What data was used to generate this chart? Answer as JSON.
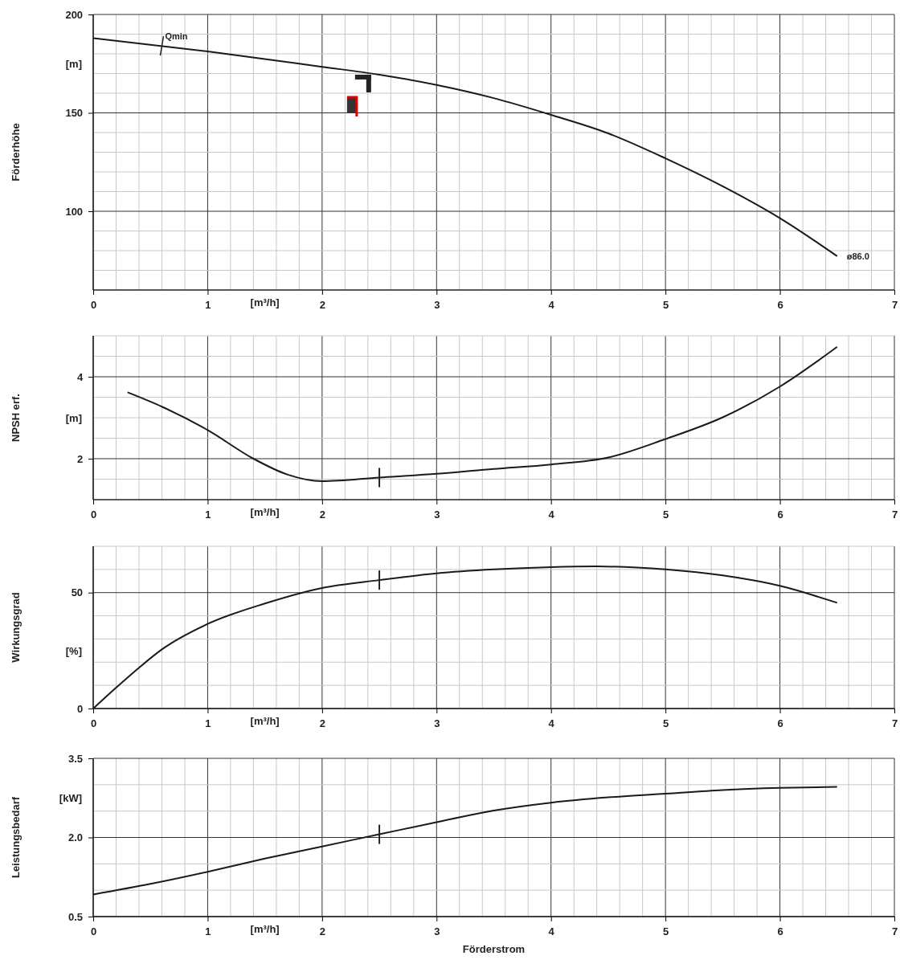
{
  "chart_data": [
    {
      "type": "line",
      "ylabel": "Förderhöhe",
      "annotations": [
        "[m]",
        "[m³/h]",
        {
          "text": "Qmin",
          "x": 0.6,
          "y": 184
        },
        {
          "text": "ø86.0",
          "x": 6.5,
          "y": 77
        }
      ],
      "xlim": [
        0,
        7
      ],
      "xticks": [
        0,
        {
          "value": 0.2,
          "label": null
        },
        {
          "value": 0.4,
          "label": null
        },
        {
          "value": 0.6,
          "label": null
        },
        {
          "value": 0.8,
          "label": null
        },
        1,
        {
          "value": 1.2,
          "label": null
        },
        {
          "value": 1.4,
          "label": null
        },
        {
          "value": 1.6,
          "label": null
        },
        {
          "value": 1.8,
          "label": null
        },
        2,
        {
          "value": 2.2,
          "label": null
        },
        {
          "value": 2.4,
          "label": null
        },
        {
          "value": 2.6,
          "label": null
        },
        {
          "value": 2.8,
          "label": null
        },
        3,
        {
          "value": 3.2,
          "label": null
        },
        {
          "value": 3.4,
          "label": null
        },
        {
          "value": 3.6,
          "label": null
        },
        {
          "value": 3.8,
          "label": null
        },
        4,
        {
          "value": 4.2,
          "label": null
        },
        {
          "value": 4.4,
          "label": null
        },
        {
          "value": 4.6,
          "label": null
        },
        {
          "value": 4.8,
          "label": null
        },
        5,
        {
          "value": 5.2,
          "label": null
        },
        {
          "value": 5.4,
          "label": null
        },
        {
          "value": 5.6,
          "label": null
        },
        {
          "value": 5.8,
          "label": null
        },
        6,
        {
          "value": 6.2,
          "label": null
        },
        {
          "value": 6.4,
          "label": null
        },
        {
          "value": 6.6,
          "label": null
        },
        {
          "value": 6.8,
          "label": null
        },
        7
      ],
      "ylim": [
        60,
        200
      ],
      "yticks": [
        {
          "value": 70,
          "label": null
        },
        {
          "value": 80,
          "label": null
        },
        {
          "value": 90,
          "label": null
        },
        100,
        {
          "value": 110,
          "label": null
        },
        {
          "value": 120,
          "label": null
        },
        {
          "value": 130,
          "label": null
        },
        {
          "value": 140,
          "label": null
        },
        150,
        {
          "value": 160,
          "label": null
        },
        {
          "value": 170,
          "label": null
        },
        {
          "value": 180,
          "label": null
        },
        {
          "value": 190,
          "label": null
        },
        200
      ],
      "grid": true,
      "marker": "none",
      "line_style": "solid",
      "x": [
        0,
        1,
        2,
        2.5,
        3,
        3.5,
        4,
        4.5,
        5,
        5.5,
        6,
        6.5
      ],
      "series": [
        {
          "color": "#1a1a1a",
          "values": [
            188,
            181.2,
            173.4,
            169.4,
            164.2,
            157.5,
            149,
            139.6,
            126.9,
            112.7,
            96.5,
            77.2
          ]
        }
      ]
    },
    {
      "type": "line",
      "ylabel": "NPSH erf.",
      "annotations": [
        "[m]",
        "[m³/h]"
      ],
      "xlim": [
        0,
        7
      ],
      "xticks": [
        0,
        {
          "value": 0.2,
          "label": null
        },
        {
          "value": 0.4,
          "label": null
        },
        {
          "value": 0.6,
          "label": null
        },
        {
          "value": 0.8,
          "label": null
        },
        1,
        {
          "value": 1.2,
          "label": null
        },
        {
          "value": 1.4,
          "label": null
        },
        {
          "value": 1.6,
          "label": null
        },
        {
          "value": 1.8,
          "label": null
        },
        2,
        {
          "value": 2.2,
          "label": null
        },
        {
          "value": 2.4,
          "label": null
        },
        {
          "value": 2.6,
          "label": null
        },
        {
          "value": 2.8,
          "label": null
        },
        3,
        {
          "value": 3.2,
          "label": null
        },
        {
          "value": 3.4,
          "label": null
        },
        {
          "value": 3.6,
          "label": null
        },
        {
          "value": 3.8,
          "label": null
        },
        4,
        {
          "value": 4.2,
          "label": null
        },
        {
          "value": 4.4,
          "label": null
        },
        {
          "value": 4.6,
          "label": null
        },
        {
          "value": 4.8,
          "label": null
        },
        5,
        {
          "value": 5.2,
          "label": null
        },
        {
          "value": 5.4,
          "label": null
        },
        {
          "value": 5.6,
          "label": null
        },
        {
          "value": 5.8,
          "label": null
        },
        6,
        {
          "value": 6.2,
          "label": null
        },
        {
          "value": 6.4,
          "label": null
        },
        {
          "value": 6.6,
          "label": null
        },
        {
          "value": 6.8,
          "label": null
        },
        7
      ],
      "ylim": [
        1,
        5
      ],
      "yticks": [
        {
          "value": 1.5,
          "label": null
        },
        2,
        {
          "value": 2.5,
          "label": null
        },
        {
          "value": 3,
          "label": null
        },
        {
          "value": 3.5,
          "label": null
        },
        4,
        {
          "value": 4.5,
          "label": null
        },
        {
          "value": 5,
          "label": null
        }
      ],
      "grid": true,
      "marker": "none",
      "line_style": "solid",
      "x": [
        0.3,
        0.6,
        1,
        1.4,
        1.7,
        2,
        2.5,
        3,
        3.5,
        4,
        4.5,
        5,
        5.5,
        6,
        6.5
      ],
      "series": [
        {
          "color": "#1a1a1a",
          "values": [
            3.62,
            3.27,
            2.7,
            2.0,
            1.61,
            1.45,
            1.54,
            1.63,
            1.75,
            1.86,
            2.03,
            2.48,
            3.01,
            3.76,
            4.73
          ]
        }
      ]
    },
    {
      "type": "line",
      "ylabel": "Wirkungsgrad",
      "annotations": [
        "[%]",
        "[m³/h]"
      ],
      "xlim": [
        0,
        7
      ],
      "xticks": [
        0,
        {
          "value": 0.2,
          "label": null
        },
        {
          "value": 0.4,
          "label": null
        },
        {
          "value": 0.6,
          "label": null
        },
        {
          "value": 0.8,
          "label": null
        },
        1,
        {
          "value": 1.2,
          "label": null
        },
        {
          "value": 1.4,
          "label": null
        },
        {
          "value": 1.6,
          "label": null
        },
        {
          "value": 1.8,
          "label": null
        },
        2,
        {
          "value": 2.2,
          "label": null
        },
        {
          "value": 2.4,
          "label": null
        },
        {
          "value": 2.6,
          "label": null
        },
        {
          "value": 2.8,
          "label": null
        },
        3,
        {
          "value": 3.2,
          "label": null
        },
        {
          "value": 3.4,
          "label": null
        },
        {
          "value": 3.6,
          "label": null
        },
        {
          "value": 3.8,
          "label": null
        },
        4,
        {
          "value": 4.2,
          "label": null
        },
        {
          "value": 4.4,
          "label": null
        },
        {
          "value": 4.6,
          "label": null
        },
        {
          "value": 4.8,
          "label": null
        },
        5,
        {
          "value": 5.2,
          "label": null
        },
        {
          "value": 5.4,
          "label": null
        },
        {
          "value": 5.6,
          "label": null
        },
        {
          "value": 5.8,
          "label": null
        },
        6,
        {
          "value": 6.2,
          "label": null
        },
        {
          "value": 6.4,
          "label": null
        },
        {
          "value": 6.6,
          "label": null
        },
        {
          "value": 6.8,
          "label": null
        },
        7
      ],
      "ylim": [
        0,
        70
      ],
      "yticks": [
        0,
        {
          "value": 10,
          "label": null
        },
        {
          "value": 20,
          "label": null
        },
        {
          "value": 30,
          "label": null
        },
        {
          "value": 40,
          "label": null
        },
        50,
        {
          "value": 60,
          "label": null
        },
        {
          "value": 70,
          "label": null
        }
      ],
      "grid": true,
      "marker": "none",
      "line_style": "solid",
      "x": [
        0,
        0.2,
        0.4,
        0.6,
        1,
        1.5,
        2,
        2.5,
        3,
        3.5,
        4,
        4.4,
        5,
        5.5,
        6,
        6.5
      ],
      "series": [
        {
          "color": "#1a1a1a",
          "values": [
            0,
            9,
            17.6,
            25.5,
            36.5,
            45.3,
            52,
            55.4,
            58.3,
            60,
            61,
            61.3,
            60,
            57.4,
            52.9,
            45.6
          ]
        }
      ]
    },
    {
      "type": "line",
      "ylabel": "Leistungsbedarf",
      "xlabel": "Förderstrom",
      "annotations": [
        "[kW]",
        "[m³/h]"
      ],
      "xlim": [
        0,
        7
      ],
      "xticks": [
        0,
        {
          "value": 0.2,
          "label": null
        },
        {
          "value": 0.4,
          "label": null
        },
        {
          "value": 0.6,
          "label": null
        },
        {
          "value": 0.8,
          "label": null
        },
        1,
        {
          "value": 1.2,
          "label": null
        },
        {
          "value": 1.4,
          "label": null
        },
        {
          "value": 1.6,
          "label": null
        },
        {
          "value": 1.8,
          "label": null
        },
        2,
        {
          "value": 2.2,
          "label": null
        },
        {
          "value": 2.4,
          "label": null
        },
        {
          "value": 2.6,
          "label": null
        },
        {
          "value": 2.8,
          "label": null
        },
        3,
        {
          "value": 3.2,
          "label": null
        },
        {
          "value": 3.4,
          "label": null
        },
        {
          "value": 3.6,
          "label": null
        },
        {
          "value": 3.8,
          "label": null
        },
        4,
        {
          "value": 4.2,
          "label": null
        },
        {
          "value": 4.4,
          "label": null
        },
        {
          "value": 4.6,
          "label": null
        },
        {
          "value": 4.8,
          "label": null
        },
        5,
        {
          "value": 5.2,
          "label": null
        },
        {
          "value": 5.4,
          "label": null
        },
        {
          "value": 5.6,
          "label": null
        },
        {
          "value": 5.8,
          "label": null
        },
        6,
        {
          "value": 6.2,
          "label": null
        },
        {
          "value": 6.4,
          "label": null
        },
        {
          "value": 6.6,
          "label": null
        },
        {
          "value": 6.8,
          "label": null
        },
        7
      ],
      "ylim": [
        0.5,
        3.5
      ],
      "yticks": [
        0.5,
        {
          "value": 1,
          "label": null
        },
        {
          "value": 1.5,
          "label": null
        },
        {
          "value": 2,
          "label": "2.0"
        },
        {
          "value": 2.5,
          "label": null
        },
        {
          "value": 3,
          "label": null
        },
        3.5
      ],
      "grid": true,
      "marker": "none",
      "line_style": "solid",
      "x": [
        0,
        0.5,
        1,
        1.5,
        2,
        2.5,
        3,
        3.5,
        4,
        4.5,
        5,
        5.5,
        6,
        6.5
      ],
      "series": [
        {
          "color": "#1a1a1a",
          "values": [
            0.92,
            1.12,
            1.35,
            1.6,
            1.83,
            2.06,
            2.29,
            2.51,
            2.66,
            2.76,
            2.83,
            2.9,
            2.94,
            2.96
          ]
        }
      ]
    }
  ]
}
